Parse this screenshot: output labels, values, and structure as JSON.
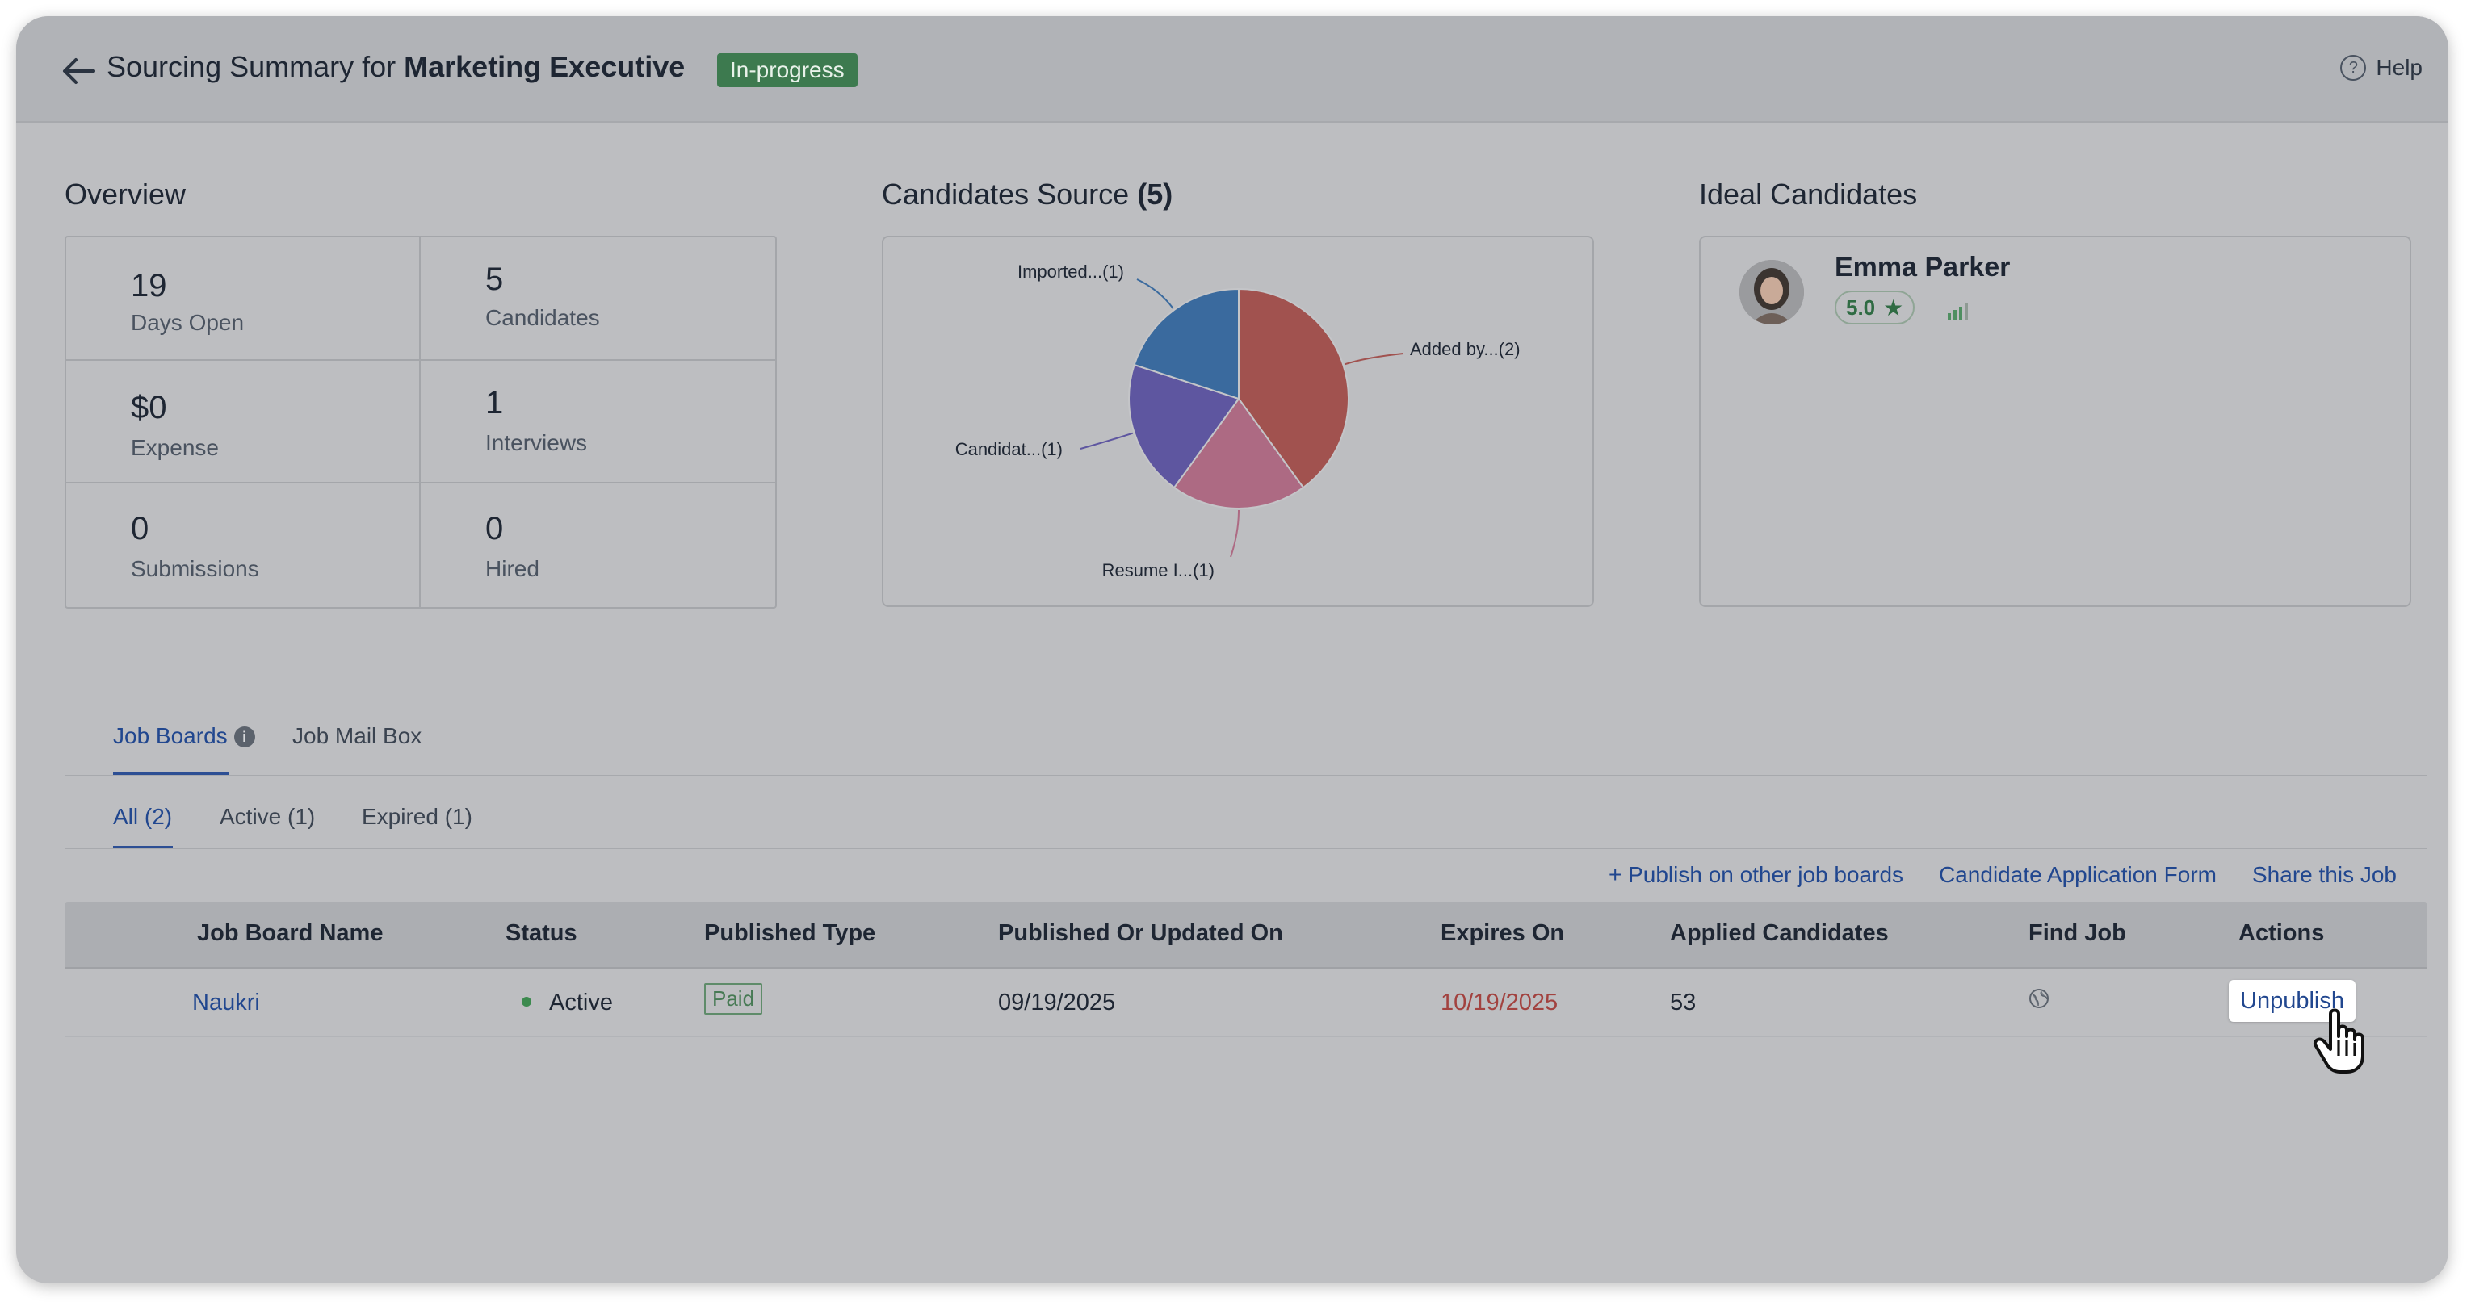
{
  "header": {
    "title_prefix": "Sourcing Summary for ",
    "title_job": "Marketing Executive",
    "status": "In-progress",
    "help_label": "Help"
  },
  "overview": {
    "title": "Overview",
    "stats": [
      {
        "value": "19",
        "label": "Days Open"
      },
      {
        "value": "5",
        "label": "Candidates"
      },
      {
        "value": "$0",
        "label": "Expense"
      },
      {
        "value": "1",
        "label": "Interviews"
      },
      {
        "value": "0",
        "label": "Submissions"
      },
      {
        "value": "0",
        "label": "Hired"
      }
    ]
  },
  "candidates_source": {
    "title": "Candidates Source",
    "count": "(5)"
  },
  "chart_data": {
    "type": "pie",
    "title": "Candidates Source (5)",
    "slices": [
      {
        "label": "Added by...(2)",
        "value": 2,
        "color": "#a1524f"
      },
      {
        "label": "Resume I...(1)",
        "value": 1,
        "color": "#ad6a83"
      },
      {
        "label": "Candidat...(1)",
        "value": 1,
        "color": "#5e56a0"
      },
      {
        "label": "Imported...(1)",
        "value": 1,
        "color": "#3a6a9e"
      }
    ]
  },
  "ideal_candidates": {
    "title": "Ideal Candidates",
    "candidate": {
      "name": "Emma Parker",
      "rating": "5.0"
    }
  },
  "tabs": {
    "job_boards": "Job Boards",
    "job_mail_box": "Job Mail Box"
  },
  "subtabs": {
    "all": "All (2)",
    "active": "Active (1)",
    "expired": "Expired (1)"
  },
  "links": {
    "publish": "+ Publish on other job boards",
    "application_form": "Candidate Application Form",
    "share": "Share this Job"
  },
  "table": {
    "headers": {
      "name": "Job Board Name",
      "status": "Status",
      "published_type": "Published Type",
      "published_on": "Published Or Updated On",
      "expires_on": "Expires On",
      "applied": "Applied Candidates",
      "find_job": "Find Job",
      "actions": "Actions"
    },
    "rows": [
      {
        "name": "Naukri",
        "status": "Active",
        "published_type": "Paid",
        "published_on": "09/19/2025",
        "expires_on": "10/19/2025",
        "applied": "53",
        "action": "Unpublish"
      }
    ]
  }
}
